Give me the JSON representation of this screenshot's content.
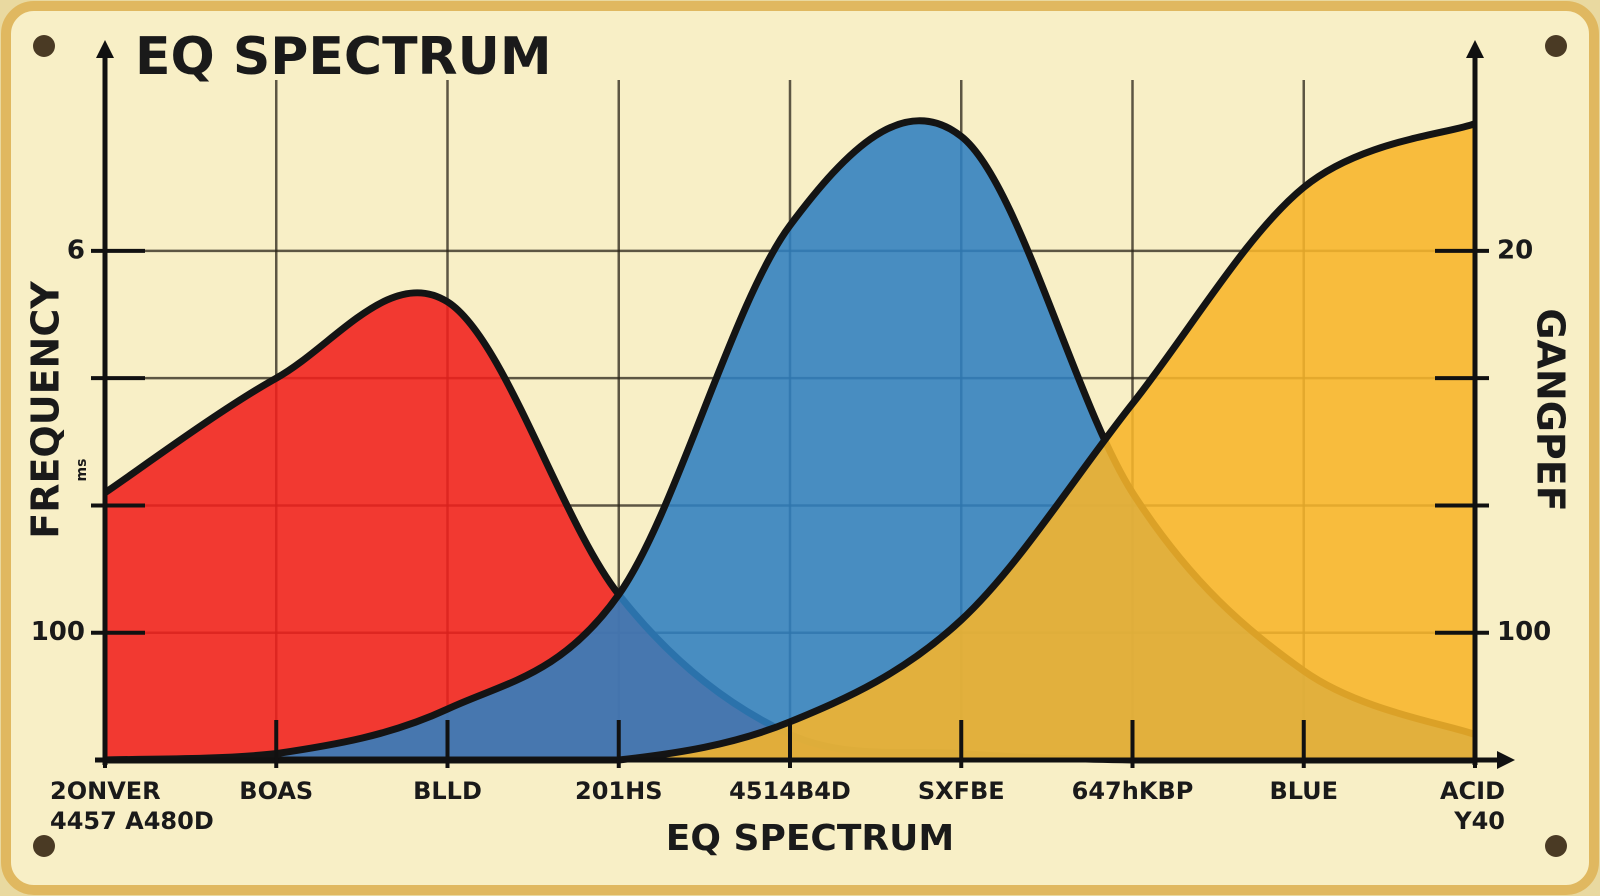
{
  "chart_data": {
    "type": "area",
    "title": "EQ SPECTRUM",
    "x_label": "EQ SPECTRUM",
    "y_label": "FREQUENCY",
    "y_unit": "ms",
    "y2_label": "GANGPEF",
    "categories": [
      [
        "2ONVER",
        "4457 A480D"
      ],
      "BOAS",
      "BLLD",
      "201HS",
      "4514B4D",
      "SXFBE",
      "647hKBP",
      "BLUE",
      [
        "ACID",
        "Y40"
      ]
    ],
    "series": [
      {
        "color": "#f0201c",
        "values": [
          2.1,
          3.0,
          3.6,
          1.3,
          0.2,
          0.05,
          0,
          0,
          0
        ]
      },
      {
        "color": "#2f7fc0",
        "values": [
          0,
          0.05,
          0.4,
          1.3,
          4.2,
          4.9,
          2.1,
          0.7,
          0.2
        ]
      },
      {
        "color": "#f7b52a",
        "values": [
          0,
          0,
          0,
          0,
          0.3,
          1.1,
          2.8,
          4.5,
          5.0
        ]
      }
    ],
    "ylim": [
      0,
      5.5
    ],
    "yticks": [
      1,
      2,
      3,
      4
    ],
    "ytick_labels": [
      "100",
      null,
      null,
      "6"
    ],
    "y2lim": [
      0,
      5.5
    ],
    "y2ticks": [
      1,
      2,
      3,
      4
    ],
    "y2tick_labels": [
      "100",
      null,
      null,
      "20"
    ],
    "grid": true
  }
}
